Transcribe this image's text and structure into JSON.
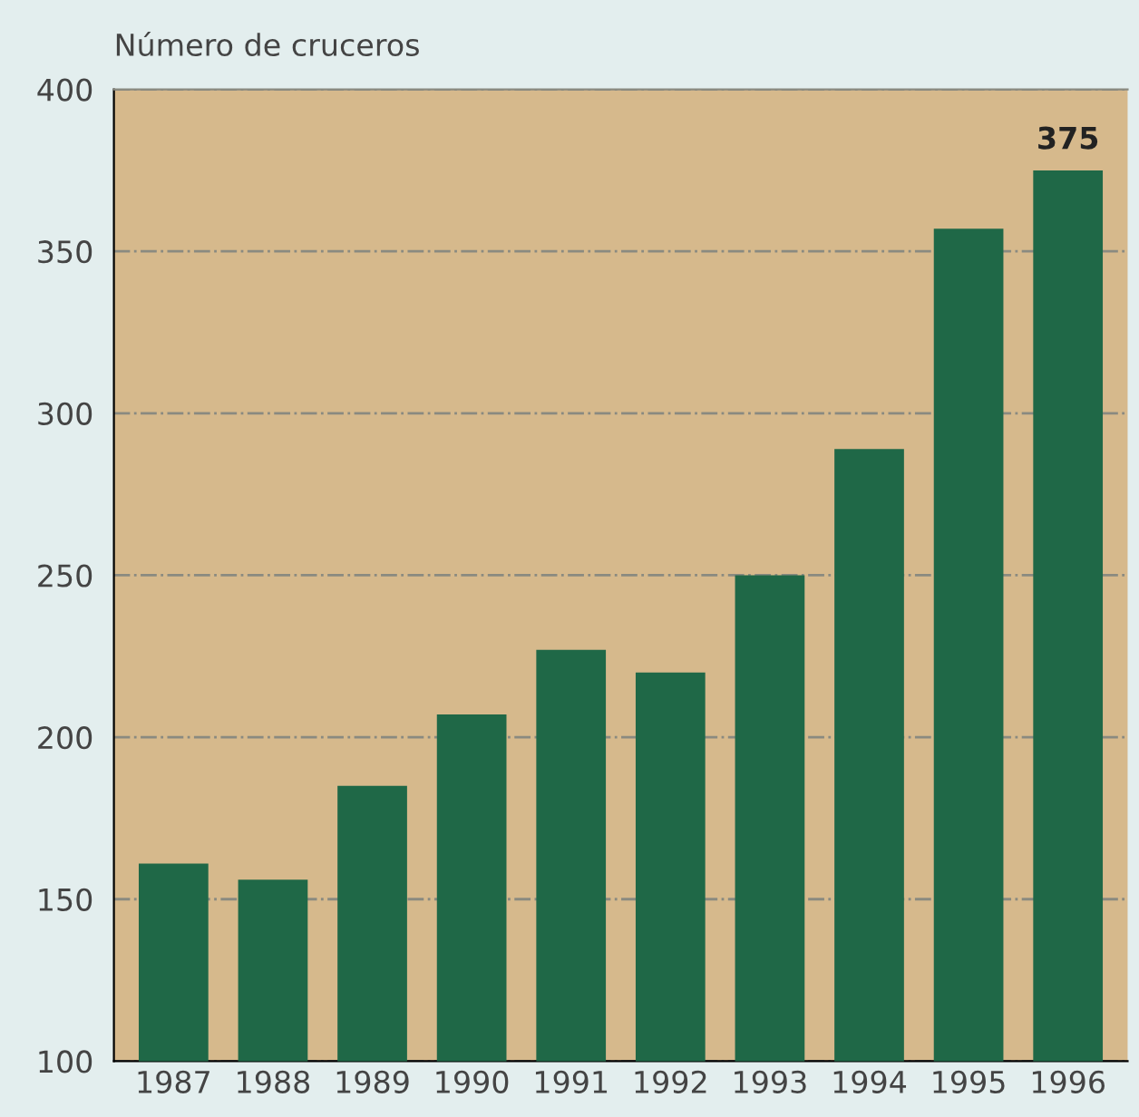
{
  "chart_data": {
    "type": "bar",
    "ylabel": "Número de cruceros",
    "categories": [
      "1987",
      "1988",
      "1989",
      "1990",
      "1991",
      "1992",
      "1993",
      "1994",
      "1995",
      "1996"
    ],
    "values": [
      161,
      156,
      185,
      207,
      227,
      220,
      250,
      289,
      357,
      375
    ],
    "value_labels": [
      null,
      null,
      null,
      null,
      null,
      null,
      null,
      null,
      null,
      "375"
    ],
    "color": "#1f6847",
    "ylim": [
      100,
      400
    ],
    "yticks": [
      100,
      150,
      200,
      250,
      300,
      350,
      400
    ],
    "grid": "y",
    "line_style": "dashdot"
  }
}
